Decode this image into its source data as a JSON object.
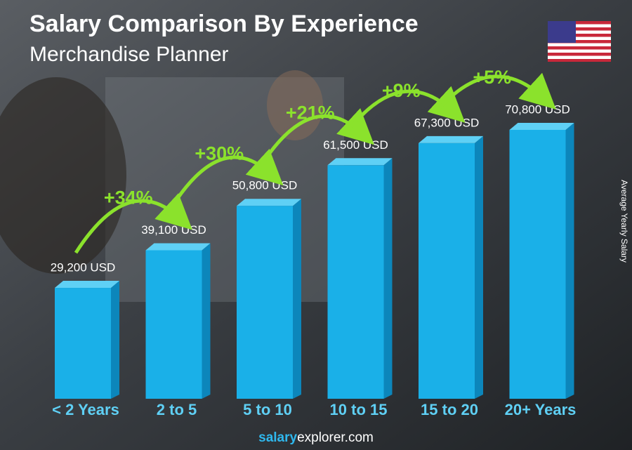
{
  "chart_data": {
    "type": "bar",
    "title": "Salary Comparison By Experience",
    "subtitle": "Merchandise Planner",
    "y_label": "Average Yearly Salary",
    "categories": [
      "< 2 Years",
      "2 to 5",
      "5 to 10",
      "10 to 15",
      "15 to 20",
      "20+ Years"
    ],
    "values": [
      29200,
      39100,
      50800,
      61500,
      67300,
      70800
    ],
    "value_labels": [
      "29,200 USD",
      "39,100 USD",
      "50,800 USD",
      "61,500 USD",
      "67,300 USD",
      "70,800 USD"
    ],
    "change_labels": [
      "+34%",
      "+30%",
      "+21%",
      "+9%",
      "+5%"
    ],
    "color": "#1ab0e8",
    "change_color": "#8be22c",
    "source": {
      "brand": "salary",
      "rest": "explorer.com"
    }
  }
}
